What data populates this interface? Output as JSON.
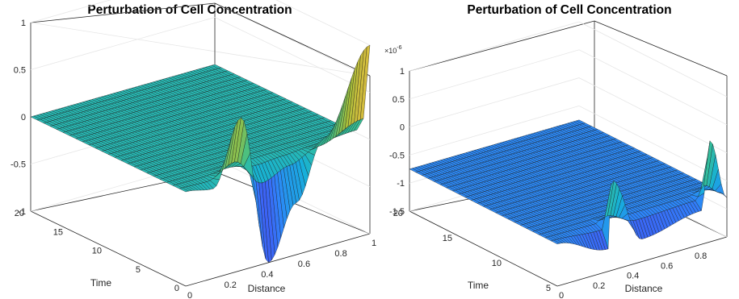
{
  "figure": {
    "colormap": "parula",
    "colormap_stops": [
      "#3e26a8",
      "#4749f2",
      "#2e85f9",
      "#15b0d9",
      "#3ac18d",
      "#a4be3a",
      "#f4ba3d",
      "#f9fb15"
    ]
  },
  "chart_data": [
    {
      "type": "surface",
      "title": "Perturbation of Cell Concentration",
      "xlabel": "Distance",
      "ylabel": "Time",
      "zlabel": "",
      "exponent_label": "",
      "xlim": [
        0,
        1
      ],
      "ylim": [
        0,
        20
      ],
      "zlim": [
        -1,
        1
      ],
      "xticks": [
        "0",
        "0.2",
        "0.4",
        "0.6",
        "0.8",
        "1"
      ],
      "yticks": [
        "0",
        "5",
        "10",
        "15",
        "20"
      ],
      "zticks": [
        "-1",
        "-0.5",
        "0",
        "0.5",
        "1"
      ],
      "grid": true,
      "surface_profile": {
        "x": [
          0,
          0.15,
          0.3,
          0.45,
          0.6,
          0.75,
          1.0
        ],
        "z_at_time_0": [
          0,
          -0.05,
          0.62,
          -1.0,
          -0.45,
          0.15,
          1.0
        ],
        "z_for_time_gt_0": 0
      }
    },
    {
      "type": "surface",
      "title": "Perturbation of Cell Concentration",
      "xlabel": "Distance",
      "ylabel": "Time",
      "zlabel": "",
      "exponent_label": "×10",
      "exponent_value": "-6",
      "xlim": [
        0,
        1
      ],
      "ylim": [
        5,
        20
      ],
      "zlim": [
        -1.5,
        1
      ],
      "xticks": [
        "0",
        "0.2",
        "0.4",
        "0.6",
        "0.8"
      ],
      "yticks": [
        "5",
        "10",
        "15",
        "20"
      ],
      "zticks": [
        "-1.5",
        "-1",
        "-0.5",
        "0",
        "0.5",
        "1"
      ],
      "grid": true,
      "surface_profile": {
        "x": [
          0,
          0.3,
          0.32,
          0.5,
          0.85,
          0.9,
          1.0
        ],
        "z_at_time_5": [
          -0.75,
          -1.1,
          0.1,
          -1.1,
          -0.9,
          0.3,
          -0.8
        ],
        "z_for_time_gt_5": -0.75
      }
    }
  ]
}
